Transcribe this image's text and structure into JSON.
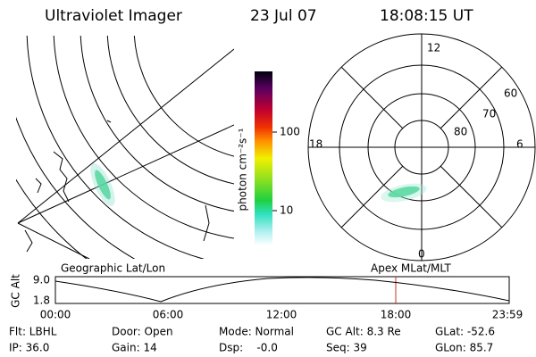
{
  "header": {
    "title": "Ultraviolet Imager",
    "date": "23 Jul 07",
    "time": "18:08:15 UT"
  },
  "colorbar": {
    "label": "photon cm⁻²s⁻¹",
    "ticks": [
      "100",
      "10"
    ]
  },
  "polar_plot": {
    "mlt_labels": [
      "12",
      "18",
      "6",
      "0"
    ],
    "mlat_labels": [
      "60",
      "70",
      "80"
    ]
  },
  "timeline": {
    "left_label": "Geographic Lat/Lon",
    "right_label": "Apex MLat/MLT",
    "y_label": "GC Alt",
    "yticks": [
      "9.0",
      "1.8"
    ],
    "xticks": [
      "00:00",
      "06:00",
      "12:00",
      "18:00",
      "23:59"
    ]
  },
  "info": {
    "rows": [
      [
        "Flt: LBHL",
        "Door: Open",
        "Mode: Normal",
        "GC Alt: 8.3 Re",
        "GLat: -52.6"
      ],
      [
        "IP: 36.0",
        "Gain: 14",
        "Dsp:    -0.0",
        "Seq: 39",
        "GLon: 85.7"
      ]
    ]
  }
}
